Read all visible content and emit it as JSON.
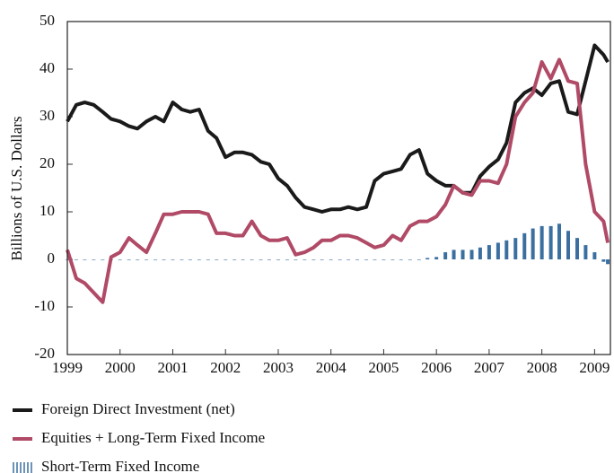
{
  "chart_data": {
    "type": "line",
    "y_label": "Billions of U.S. Dollars",
    "x": [
      1999,
      1999.17,
      1999.33,
      1999.5,
      1999.67,
      1999.83,
      2000,
      2000.17,
      2000.33,
      2000.5,
      2000.67,
      2000.83,
      2001,
      2001.17,
      2001.33,
      2001.5,
      2001.67,
      2001.83,
      2002,
      2002.17,
      2002.33,
      2002.5,
      2002.67,
      2002.83,
      2003,
      2003.17,
      2003.33,
      2003.5,
      2003.67,
      2003.83,
      2004,
      2004.17,
      2004.33,
      2004.5,
      2004.67,
      2004.83,
      2005,
      2005.17,
      2005.33,
      2005.5,
      2005.67,
      2005.83,
      2006,
      2006.17,
      2006.33,
      2006.5,
      2006.67,
      2006.83,
      2007,
      2007.17,
      2007.33,
      2007.5,
      2007.67,
      2007.83,
      2008,
      2008.17,
      2008.33,
      2008.5,
      2008.67,
      2008.83,
      2009,
      2009.17,
      2009.25
    ],
    "series": [
      {
        "name": "Foreign Direct Investment (net)",
        "color": "#1a1a1a",
        "kind": "line",
        "values": [
          29,
          32.5,
          33,
          32.5,
          31,
          29.5,
          29,
          28,
          27.5,
          29,
          30,
          29,
          33,
          31.5,
          31,
          31.5,
          27,
          25.5,
          21.5,
          22.5,
          22.5,
          22,
          20.5,
          20,
          17,
          15.5,
          13,
          11,
          10.5,
          10,
          10.5,
          10.5,
          11,
          10.5,
          11,
          16.5,
          18,
          18.5,
          19,
          22,
          23,
          18,
          16.5,
          15.5,
          15.5,
          14,
          14,
          17.5,
          19.5,
          21,
          24.5,
          33,
          35,
          36,
          34.5,
          37,
          37.5,
          31,
          30.5,
          37.5,
          45,
          43,
          41.5
        ]
      },
      {
        "name": "Equities + Long-Term Fixed Income",
        "color": "#b04a66",
        "kind": "line",
        "values": [
          2,
          -4,
          -5,
          -7,
          -9,
          0.5,
          1.5,
          4.5,
          3,
          1.5,
          5.5,
          9.5,
          9.5,
          10,
          10,
          10,
          9.5,
          5.5,
          5.5,
          5,
          5,
          8,
          5,
          4,
          4,
          4.5,
          1,
          1.5,
          2.5,
          4,
          4,
          5,
          5,
          4.5,
          3.5,
          2.5,
          3,
          5,
          4,
          7,
          8,
          8,
          9,
          11.5,
          15.5,
          14,
          13.5,
          16.5,
          16.5,
          16,
          20,
          30,
          33,
          35,
          41.5,
          38,
          42,
          37.5,
          37,
          20,
          10,
          8,
          3.5
        ]
      },
      {
        "name": "Short-Term Fixed Income",
        "color": "#3a6fa0",
        "kind": "bar",
        "values": [
          0,
          0,
          0,
          0,
          0,
          0,
          0,
          0,
          0,
          0,
          0,
          0,
          0,
          0,
          0,
          0,
          0,
          0,
          0,
          0,
          0,
          0,
          0,
          0,
          0,
          0,
          0,
          0,
          0,
          0,
          0,
          0,
          0,
          0,
          0,
          0,
          0,
          0,
          0,
          0,
          0,
          0.3,
          0.5,
          1.5,
          2,
          2,
          2,
          2.5,
          3,
          3.5,
          4,
          4.5,
          5.5,
          6.5,
          7,
          7,
          7.5,
          6,
          4.5,
          3,
          1.5,
          -0.5,
          -1
        ]
      }
    ],
    "xlim": [
      1999,
      2009.3
    ],
    "xticks": [
      1999,
      2000,
      2001,
      2002,
      2003,
      2004,
      2005,
      2006,
      2007,
      2008,
      2009
    ],
    "ylim": [
      -20,
      50
    ],
    "yticks": [
      -20,
      -10,
      0,
      10,
      20,
      30,
      40,
      50
    ]
  }
}
